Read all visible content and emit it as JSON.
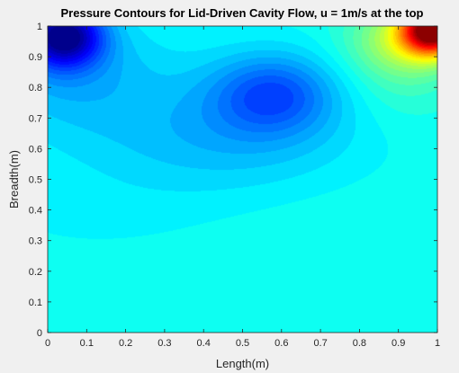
{
  "chart_data": {
    "type": "heatmap",
    "subtype": "filled-contour",
    "title": "Pressure Contours for Lid-Driven Cavity Flow, u = 1m/s at the top",
    "xlabel": "Length(m)",
    "ylabel": "Breadth(m)",
    "xlim": [
      0,
      1
    ],
    "ylim": [
      0,
      1
    ],
    "xticks": [
      "0",
      "0.1",
      "0.2",
      "0.3",
      "0.4",
      "0.5",
      "0.6",
      "0.7",
      "0.8",
      "0.9",
      "1"
    ],
    "yticks": [
      "0",
      "0.1",
      "0.2",
      "0.3",
      "0.4",
      "0.5",
      "0.6",
      "0.7",
      "0.8",
      "0.9",
      "1"
    ],
    "colormap": "jet",
    "grid": false,
    "legend": "none",
    "features": [
      {
        "x": 0.04,
        "y": 0.96,
        "level": 0.03,
        "kind": "minimum"
      },
      {
        "x": 0.58,
        "y": 0.78,
        "level": 0.24,
        "kind": "minimum"
      },
      {
        "x": 0.97,
        "y": 0.98,
        "level": 1.0,
        "kind": "maximum"
      },
      {
        "x": 0.5,
        "y": 0.2,
        "level": 0.39,
        "kind": "plateau"
      }
    ],
    "colors": {
      "background": "#f0f0f0",
      "plot_edge": "#262626"
    }
  }
}
